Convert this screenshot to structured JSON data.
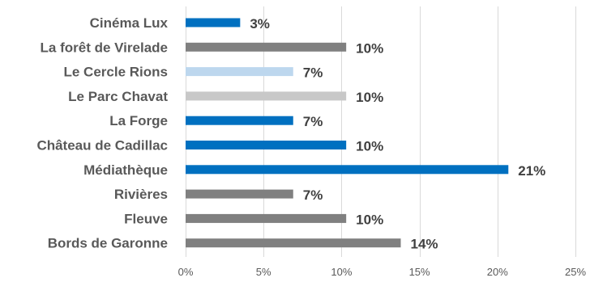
{
  "chart_data": {
    "type": "bar",
    "orientation": "horizontal",
    "title": "",
    "xlabel": "",
    "ylabel": "",
    "categories": [
      "Cinéma Lux",
      "La forêt de Virelade",
      "Le Cercle Rions",
      "Le Parc Chavat",
      "La Forge",
      "Château de Cadillac",
      "Médiathèque",
      "Rivières",
      "Fleuve",
      "Bords de Garonne"
    ],
    "values": [
      0.035,
      0.103,
      0.069,
      0.103,
      0.069,
      0.103,
      0.207,
      0.069,
      0.103,
      0.138
    ],
    "value_labels": [
      "3%",
      "10%",
      "7%",
      "10%",
      "7%",
      "10%",
      "21%",
      "7%",
      "10%",
      "14%"
    ],
    "bar_colors": [
      "#0070c0",
      "#808080",
      "#bdd7ee",
      "#c8c8c8",
      "#0070c0",
      "#0070c0",
      "#0070c0",
      "#808080",
      "#808080",
      "#808080"
    ],
    "xlim": [
      0,
      0.25
    ],
    "xticks": [
      0,
      0.05,
      0.1,
      0.15,
      0.2,
      0.25
    ],
    "xtick_labels": [
      "0%",
      "5%",
      "10%",
      "15%",
      "20%",
      "25%"
    ],
    "grid": "vertical",
    "legend": "none"
  }
}
